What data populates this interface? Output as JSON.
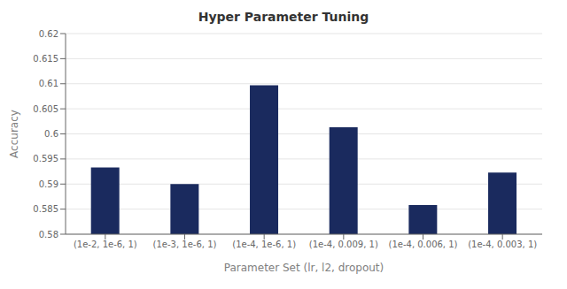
{
  "chart_data": {
    "type": "bar",
    "title": "Hyper Parameter Tuning",
    "xlabel": "Parameter Set (lr, l2, dropout)",
    "ylabel": "Accuracy",
    "categories": [
      "(1e-2, 1e-6, 1)",
      "(1e-3, 1e-6, 1)",
      "(1e-4, 1e-6, 1)",
      "(1e-4, 0.009, 1)",
      "(1e-4, 0.006, 1)",
      "(1e-4, 0.003, 1)"
    ],
    "values": [
      0.5933,
      0.59,
      0.6097,
      0.6013,
      0.5858,
      0.5923
    ],
    "color": "#1a2a5e",
    "ylim": [
      0.58,
      0.62
    ],
    "yticks": [
      0.58,
      0.585,
      0.59,
      0.595,
      0.6,
      0.605,
      0.61,
      0.615,
      0.62
    ],
    "grid": true
  }
}
